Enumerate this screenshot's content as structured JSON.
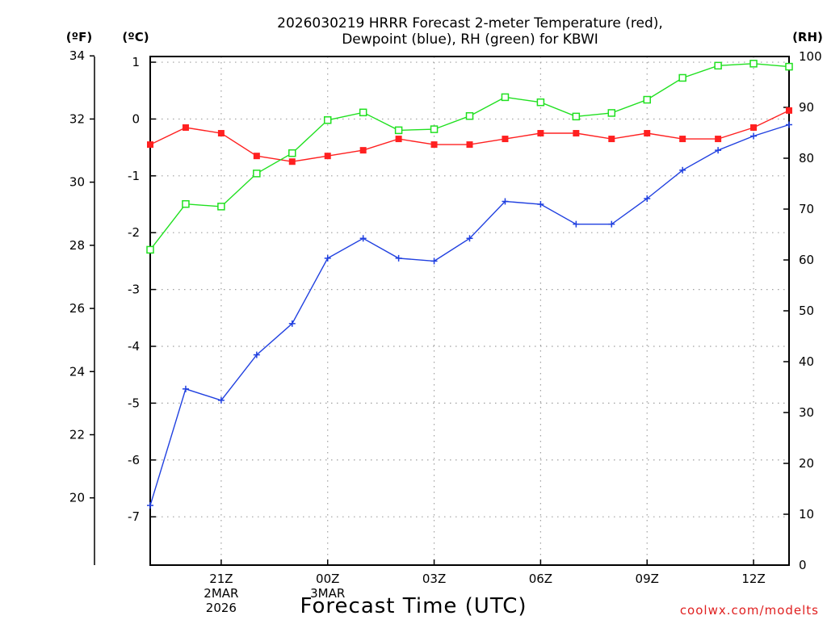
{
  "chart_data": {
    "type": "line",
    "title_lines": [
      "2026030219 HRRR Forecast 2-meter Temperature (red),",
      "Dewpoint (blue), RH (green) for KBWI"
    ],
    "xlabel": "Forecast Time (UTC)",
    "credit": "coolwx.com/modelts",
    "units": {
      "fahrenheit": "(ºF)",
      "celsius": "(ºC)",
      "rh": "(RH)"
    },
    "x_range_hours": [
      19,
      37
    ],
    "x_ticks": [
      {
        "hour": 21,
        "lines": [
          "21Z",
          "2MAR",
          "2026"
        ]
      },
      {
        "hour": 24,
        "lines": [
          "00Z",
          "3MAR"
        ]
      },
      {
        "hour": 27,
        "lines": [
          "03Z"
        ]
      },
      {
        "hour": 30,
        "lines": [
          "06Z"
        ]
      },
      {
        "hour": 33,
        "lines": [
          "09Z"
        ]
      },
      {
        "hour": 36,
        "lines": [
          "12Z"
        ]
      }
    ],
    "celsius_axis": {
      "range": [
        -7.85,
        1.1
      ],
      "ticks": [
        1,
        0,
        -1,
        -2,
        -3,
        -4,
        -5,
        -6,
        -7
      ]
    },
    "fahrenheit_ticks": [
      34,
      32,
      30,
      28,
      26,
      24,
      22,
      20
    ],
    "rh_axis": {
      "range": [
        0,
        100
      ],
      "ticks": [
        100,
        90,
        80,
        70,
        60,
        50,
        40,
        30,
        20,
        10,
        0
      ]
    },
    "grid": true,
    "series": [
      {
        "name": "Temperature",
        "axis": "celsius",
        "color": "#ff2020",
        "marker": "filled-square",
        "hours": [
          19,
          20,
          21,
          22,
          23,
          24,
          25,
          26,
          27,
          28,
          29,
          30,
          31,
          32,
          33,
          34,
          35,
          36,
          37
        ],
        "values": [
          -0.45,
          -0.15,
          -0.25,
          -0.65,
          -0.75,
          -0.65,
          -0.55,
          -0.35,
          -0.45,
          -0.45,
          -0.35,
          -0.25,
          -0.25,
          -0.35,
          -0.25,
          -0.35,
          -0.35,
          -0.15,
          0.15
        ]
      },
      {
        "name": "Dewpoint",
        "axis": "celsius",
        "color": "#2040e0",
        "marker": "plus",
        "hours": [
          19,
          20,
          21,
          22,
          23,
          24,
          25,
          26,
          27,
          28,
          29,
          30,
          31,
          32,
          33,
          34,
          35,
          36,
          37
        ],
        "values": [
          -6.8,
          -4.75,
          -4.95,
          -4.15,
          -3.6,
          -2.45,
          -2.1,
          -2.45,
          -2.5,
          -2.1,
          -1.45,
          -1.5,
          -1.85,
          -1.85,
          -1.4,
          -0.9,
          -0.55,
          -0.3,
          -0.1
        ]
      },
      {
        "name": "Relative Humidity",
        "axis": "rh",
        "color": "#20e020",
        "marker": "open-square",
        "hours": [
          19,
          20,
          21,
          22,
          23,
          24,
          25,
          26,
          27,
          28,
          29,
          30,
          31,
          32,
          33,
          34,
          35,
          36,
          37
        ],
        "values": [
          62,
          71,
          70.5,
          77,
          81,
          87.5,
          89,
          85.5,
          85.7,
          88.3,
          92,
          91,
          88.2,
          88.9,
          91.5,
          95.8,
          98.2,
          98.6,
          98
        ]
      }
    ]
  }
}
